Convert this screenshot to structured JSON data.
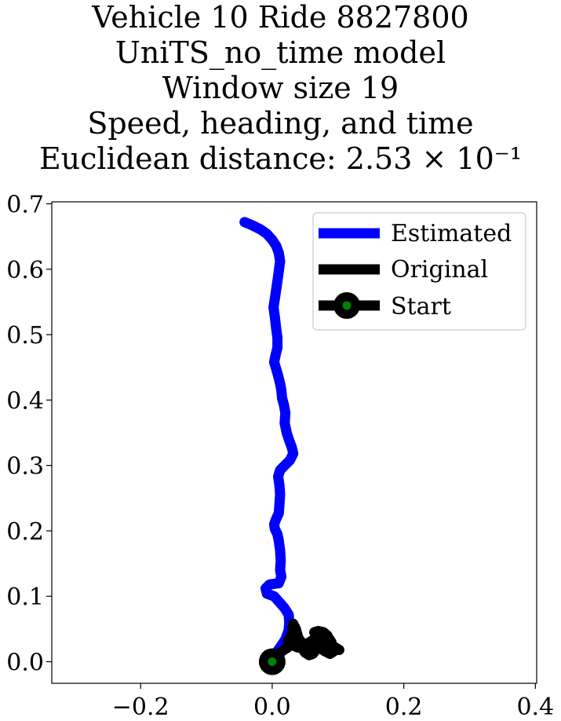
{
  "chart_data": {
    "type": "line",
    "title_lines": [
      "Vehicle 10 Ride 8827800",
      "UniTS_no_time model",
      "Window size 19",
      "Speed, heading, and time",
      "Euclidean distance: 2.53 × 10⁻¹"
    ],
    "xlim": [
      -0.335,
      0.402
    ],
    "ylim": [
      -0.033,
      0.703
    ],
    "xticks": [
      -0.2,
      0.0,
      0.2,
      0.4
    ],
    "xtick_labels": [
      "−0.2",
      "0.0",
      "0.2",
      "0.4"
    ],
    "yticks": [
      0.0,
      0.1,
      0.2,
      0.3,
      0.4,
      0.5,
      0.6,
      0.7
    ],
    "ytick_labels": [
      "0.0",
      "0.1",
      "0.2",
      "0.3",
      "0.4",
      "0.5",
      "0.6",
      "0.7"
    ],
    "grid": false,
    "legend_position": "upper-right",
    "series": [
      {
        "name": "Estimated",
        "color": "#0000ff",
        "points": [
          [
            0.0,
            0.0
          ],
          [
            0.005,
            0.012
          ],
          [
            0.012,
            0.022
          ],
          [
            0.02,
            0.034
          ],
          [
            0.025,
            0.048
          ],
          [
            0.026,
            0.06
          ],
          [
            0.025,
            0.072
          ],
          [
            0.018,
            0.083
          ],
          [
            0.01,
            0.092
          ],
          [
            0.003,
            0.1
          ],
          [
            -0.008,
            0.104
          ],
          [
            -0.01,
            0.112
          ],
          [
            -0.004,
            0.118
          ],
          [
            0.01,
            0.12
          ],
          [
            0.014,
            0.13
          ],
          [
            0.012,
            0.14
          ],
          [
            0.013,
            0.155
          ],
          [
            0.012,
            0.17
          ],
          [
            0.01,
            0.185
          ],
          [
            0.008,
            0.195
          ],
          [
            0.004,
            0.203
          ],
          [
            0.003,
            0.21
          ],
          [
            0.006,
            0.218
          ],
          [
            0.01,
            0.227
          ],
          [
            0.011,
            0.24
          ],
          [
            0.012,
            0.256
          ],
          [
            0.011,
            0.27
          ],
          [
            0.009,
            0.283
          ],
          [
            0.012,
            0.293
          ],
          [
            0.02,
            0.301
          ],
          [
            0.027,
            0.308
          ],
          [
            0.032,
            0.318
          ],
          [
            0.03,
            0.327
          ],
          [
            0.026,
            0.338
          ],
          [
            0.022,
            0.35
          ],
          [
            0.019,
            0.365
          ],
          [
            0.02,
            0.38
          ],
          [
            0.018,
            0.392
          ],
          [
            0.015,
            0.403
          ],
          [
            0.014,
            0.415
          ],
          [
            0.012,
            0.425
          ],
          [
            0.009,
            0.437
          ],
          [
            0.006,
            0.448
          ],
          [
            0.003,
            0.458
          ],
          [
            0.005,
            0.468
          ],
          [
            0.008,
            0.48
          ],
          [
            0.008,
            0.495
          ],
          [
            0.006,
            0.51
          ],
          [
            0.004,
            0.527
          ],
          [
            0.002,
            0.542
          ],
          [
            0.004,
            0.555
          ],
          [
            0.006,
            0.568
          ],
          [
            0.008,
            0.582
          ],
          [
            0.01,
            0.597
          ],
          [
            0.012,
            0.612
          ],
          [
            0.01,
            0.625
          ],
          [
            0.006,
            0.636
          ],
          [
            0.0,
            0.645
          ],
          [
            -0.008,
            0.654
          ],
          [
            -0.018,
            0.661
          ],
          [
            -0.03,
            0.667
          ],
          [
            -0.042,
            0.672
          ]
        ]
      },
      {
        "name": "Original",
        "color": "#000000",
        "points": [
          [
            0.0,
            0.0
          ],
          [
            0.005,
            0.008
          ],
          [
            0.012,
            0.014
          ],
          [
            0.018,
            0.018
          ],
          [
            0.024,
            0.022
          ],
          [
            0.028,
            0.032
          ],
          [
            0.03,
            0.045
          ],
          [
            0.032,
            0.058
          ],
          [
            0.036,
            0.05
          ],
          [
            0.04,
            0.035
          ],
          [
            0.046,
            0.025
          ],
          [
            0.052,
            0.018
          ],
          [
            0.058,
            0.02
          ],
          [
            0.064,
            0.026
          ],
          [
            0.072,
            0.028
          ],
          [
            0.082,
            0.027
          ],
          [
            0.092,
            0.024
          ],
          [
            0.102,
            0.018
          ],
          [
            0.094,
            0.022
          ],
          [
            0.088,
            0.03
          ],
          [
            0.084,
            0.04
          ],
          [
            0.078,
            0.045
          ],
          [
            0.07,
            0.047
          ],
          [
            0.064,
            0.045
          ],
          [
            0.07,
            0.04
          ],
          [
            0.078,
            0.038
          ],
          [
            0.086,
            0.036
          ],
          [
            0.09,
            0.03
          ],
          [
            0.086,
            0.024
          ],
          [
            0.078,
            0.02
          ],
          [
            0.07,
            0.022
          ],
          [
            0.064,
            0.026
          ],
          [
            0.058,
            0.022
          ],
          [
            0.052,
            0.026
          ],
          [
            0.044,
            0.03
          ],
          [
            0.04,
            0.036
          ],
          [
            0.034,
            0.04
          ],
          [
            0.028,
            0.038
          ],
          [
            0.024,
            0.032
          ],
          [
            0.03,
            0.026
          ],
          [
            0.038,
            0.022
          ],
          [
            0.046,
            0.024
          ],
          [
            0.054,
            0.028
          ],
          [
            0.06,
            0.032
          ],
          [
            0.066,
            0.036
          ],
          [
            0.072,
            0.038
          ],
          [
            0.08,
            0.036
          ],
          [
            0.086,
            0.03
          ],
          [
            0.09,
            0.024
          ],
          [
            0.094,
            0.016
          ],
          [
            0.088,
            0.012
          ],
          [
            0.08,
            0.016
          ],
          [
            0.074,
            0.02
          ],
          [
            0.07,
            0.024
          ],
          [
            0.066,
            0.018
          ],
          [
            0.062,
            0.012
          ],
          [
            0.056,
            0.01
          ],
          [
            0.05,
            0.014
          ],
          [
            0.046,
            0.02
          ],
          [
            0.04,
            0.022
          ]
        ]
      }
    ],
    "start_marker": {
      "name": "Start",
      "x": 0.0,
      "y": 0.0,
      "outer_color": "#000000",
      "inner_color": "#008000"
    }
  }
}
